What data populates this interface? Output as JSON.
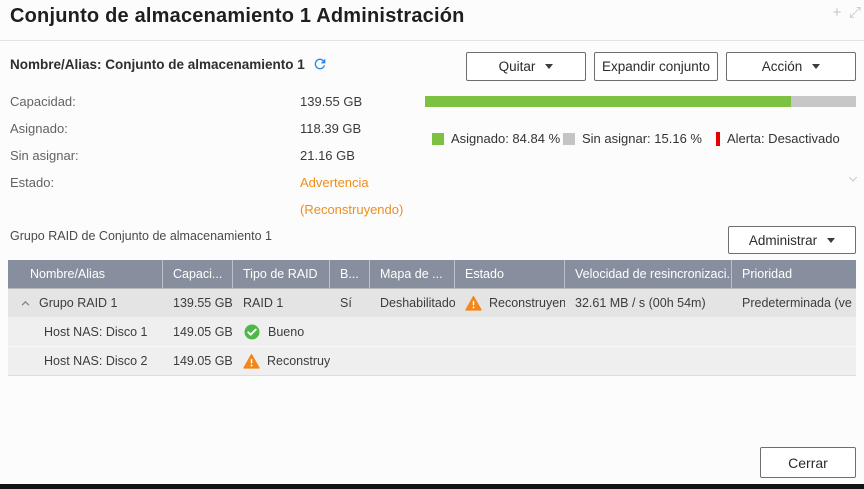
{
  "window": {
    "title": "Conjunto de almacenamiento 1 Administración",
    "plus_icon": "+",
    "resize_icon": "⤢"
  },
  "toolbar": {
    "remove_label": "Quitar",
    "expand_label": "Expandir conjunto",
    "action_label": "Acción"
  },
  "pool": {
    "name_line": "Nombre/Alias: Conjunto de almacenamiento 1",
    "stats": [
      {
        "label": "Capacidad:",
        "value": "139.55 GB"
      },
      {
        "label": "Asignado:",
        "value": "118.39 GB"
      },
      {
        "label": "Sin asignar:",
        "value": "21.16 GB"
      },
      {
        "label": "Estado:",
        "value": "Advertencia",
        "value2": "(Reconstruyendo)"
      }
    ],
    "status_color": "#ef8e1b"
  },
  "usage": {
    "allocated_pct": 84.84,
    "bar_colors": {
      "allocated": "#7cc142",
      "unallocated": "#c7c7c7"
    },
    "legend": [
      {
        "label": "Asignado: 84.84 %",
        "color": "#7cc142"
      },
      {
        "label": "Sin asignar: 15.16 %",
        "color": "#c4c4c4"
      },
      {
        "label": "Alerta: Desactivado",
        "color": "#e60000"
      }
    ]
  },
  "raid_section": {
    "title": "Grupo RAID de Conjunto de almacenamiento 1",
    "manage_label": "Administrar"
  },
  "table": {
    "headers": [
      "Nombre/Alias",
      "Capaci...",
      "Tipo de RAID",
      "B...",
      "Mapa de ...",
      "Estado",
      "Velocidad de resincronizaci...",
      "Prioridad"
    ],
    "rows": [
      {
        "name": "Grupo RAID 1",
        "capacity": "139.55 GB",
        "raid_type": "RAID 1",
        "b": "Sí",
        "map": "Deshabilitado",
        "estado": "Reconstruyendo",
        "estado_icon": "warning",
        "speed": "32.61 MB / s (00h 54m)",
        "priority": "Predeterminada (ve"
      },
      {
        "name": "Host NAS: Disco 1",
        "capacity": "149.05 GB",
        "status": "Bueno",
        "status_icon": "good"
      },
      {
        "name": "Host NAS: Disco 2",
        "capacity": "149.05 GB",
        "status": "Reconstruyendo",
        "status_icon": "warning"
      }
    ]
  },
  "footer": {
    "close_label": "Cerrar"
  }
}
